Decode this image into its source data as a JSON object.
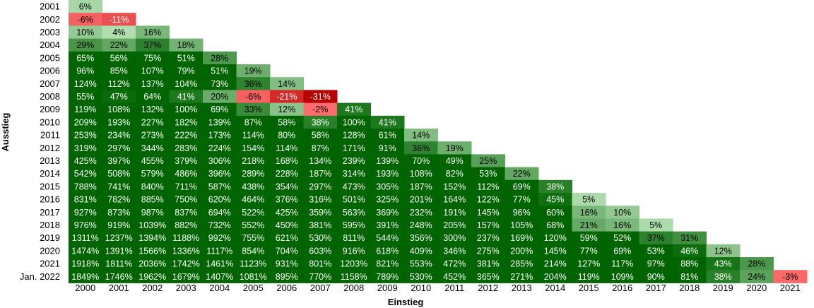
{
  "chart_data": {
    "type": "heatmap",
    "title": "",
    "xlabel": "Einstieg",
    "ylabel": "Ausstieg",
    "x_categories": [
      "2000",
      "2001",
      "2002",
      "2003",
      "2004",
      "2005",
      "2006",
      "2007",
      "2008",
      "2009",
      "2010",
      "2011",
      "2012",
      "2013",
      "2014",
      "2015",
      "2016",
      "2017",
      "2018",
      "2019",
      "2020",
      "2021"
    ],
    "y_categories": [
      "2001",
      "2002",
      "2003",
      "2004",
      "2005",
      "2006",
      "2007",
      "2008",
      "2009",
      "2010",
      "2011",
      "2012",
      "2013",
      "2014",
      "2015",
      "2016",
      "2017",
      "2018",
      "2019",
      "2020",
      "2021",
      "Jan. 2022"
    ],
    "values": [
      [
        6
      ],
      [
        -6,
        -11
      ],
      [
        10,
        4,
        16
      ],
      [
        29,
        22,
        37,
        18
      ],
      [
        65,
        56,
        75,
        51,
        28
      ],
      [
        96,
        85,
        107,
        79,
        51,
        19
      ],
      [
        124,
        112,
        137,
        104,
        73,
        36,
        14
      ],
      [
        55,
        47,
        64,
        41,
        20,
        -6,
        -21,
        -31
      ],
      [
        119,
        108,
        132,
        100,
        69,
        33,
        12,
        -2,
        41
      ],
      [
        209,
        193,
        227,
        182,
        139,
        87,
        58,
        38,
        100,
        41
      ],
      [
        253,
        234,
        273,
        222,
        173,
        114,
        80,
        58,
        128,
        61,
        14
      ],
      [
        319,
        297,
        344,
        283,
        224,
        154,
        114,
        87,
        171,
        91,
        36,
        19
      ],
      [
        425,
        397,
        455,
        379,
        306,
        218,
        168,
        134,
        239,
        139,
        70,
        49,
        25
      ],
      [
        542,
        508,
        579,
        486,
        396,
        289,
        228,
        187,
        314,
        193,
        108,
        82,
        53,
        22
      ],
      [
        788,
        741,
        840,
        711,
        587,
        438,
        354,
        297,
        473,
        305,
        187,
        152,
        112,
        69,
        38
      ],
      [
        831,
        782,
        885,
        750,
        620,
        464,
        376,
        316,
        501,
        325,
        201,
        164,
        122,
        77,
        45,
        5
      ],
      [
        927,
        873,
        987,
        837,
        694,
        522,
        425,
        359,
        563,
        369,
        232,
        191,
        145,
        96,
        60,
        16,
        10
      ],
      [
        976,
        919,
        1039,
        882,
        732,
        552,
        450,
        381,
        595,
        391,
        248,
        205,
        157,
        105,
        68,
        21,
        16,
        5
      ],
      [
        1311,
        1237,
        1394,
        1188,
        992,
        755,
        621,
        530,
        811,
        544,
        356,
        300,
        237,
        169,
        120,
        59,
        52,
        37,
        31
      ],
      [
        1474,
        1391,
        1566,
        1336,
        1117,
        854,
        704,
        603,
        916,
        618,
        409,
        346,
        275,
        200,
        145,
        77,
        69,
        53,
        46,
        12
      ],
      [
        1918,
        1811,
        2036,
        1742,
        1461,
        1123,
        931,
        801,
        1203,
        821,
        553,
        472,
        381,
        285,
        214,
        127,
        117,
        97,
        88,
        43,
        28
      ],
      [
        1849,
        1746,
        1962,
        1679,
        1407,
        1081,
        895,
        770,
        1158,
        789,
        530,
        452,
        365,
        271,
        204,
        119,
        109,
        90,
        81,
        38,
        24,
        -3
      ]
    ],
    "value_suffix": "%",
    "colors": {
      "dark_green": "#006400",
      "light_green": "#ccf0cc",
      "light_red": "#ff7070",
      "dark_red": "#b80000",
      "background": "#ffffff"
    }
  }
}
